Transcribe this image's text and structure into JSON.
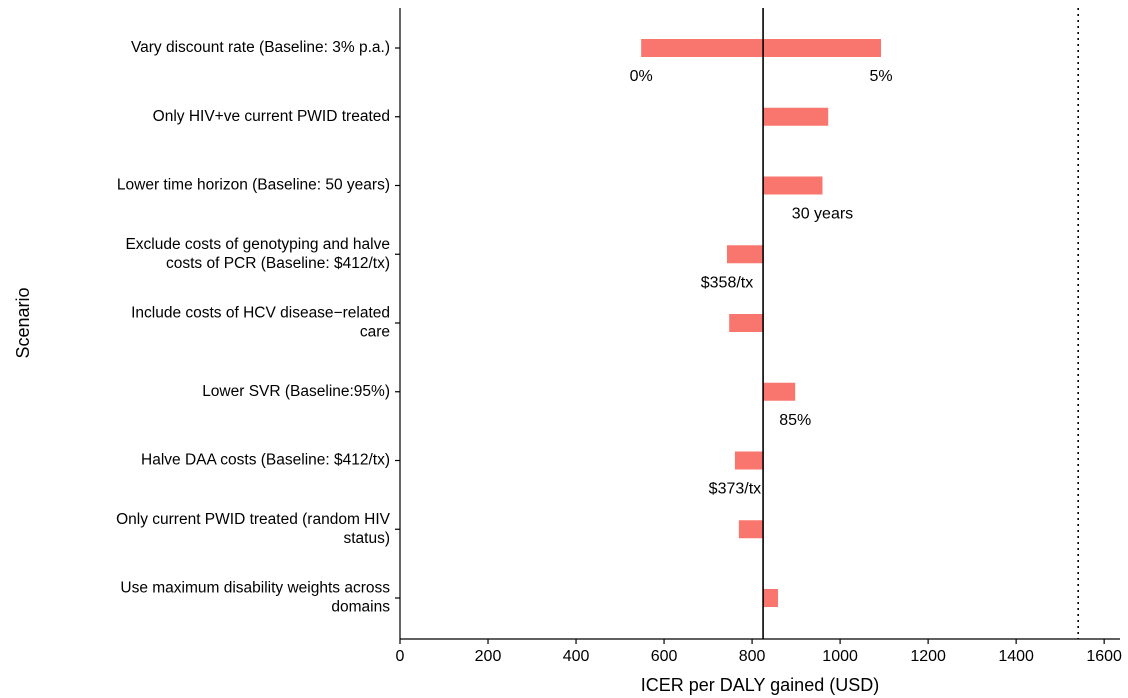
{
  "chart_data": {
    "type": "tornado",
    "x_label": "ICER per DALY gained (USD)",
    "y_label": "Scenario",
    "categories": [
      "Vary discount rate (Baseline: 3% p.a.)",
      "Only HIV+ve current PWID treated",
      "Lower time horizon (Baseline: 50 years)",
      "Exclude costs of genotyping and halve\ncosts of PCR (Baseline: $412/tx)",
      "Include costs of HCV disease−related\ncare",
      "Lower SVR (Baseline:95%)",
      "Halve DAA costs (Baseline: $412/tx)",
      "Only current PWID treated (random HIV\nstatus)",
      "Use maximum disability weights across\ndomains"
    ],
    "ranges": [
      [
        548,
        1093
      ],
      [
        825,
        973
      ],
      [
        825,
        960
      ],
      [
        743,
        825
      ],
      [
        748,
        825
      ],
      [
        825,
        898
      ],
      [
        761,
        825
      ],
      [
        770,
        825
      ],
      [
        825,
        859
      ]
    ],
    "range_labels": [
      [
        "0%",
        "5%"
      ],
      [
        null,
        null
      ],
      [
        null,
        "30 years"
      ],
      [
        "$358/tx",
        null
      ],
      [
        null,
        null
      ],
      [
        null,
        "85%"
      ],
      [
        "$373/tx",
        null
      ],
      [
        null,
        null
      ],
      [
        null,
        null
      ]
    ],
    "color": "#f8766d",
    "baseline": 825,
    "threshold": 1541,
    "xlim": [
      0,
      1636
    ],
    "xticks": [
      0,
      200,
      400,
      600,
      800,
      1000,
      1200,
      1400,
      1600
    ]
  }
}
